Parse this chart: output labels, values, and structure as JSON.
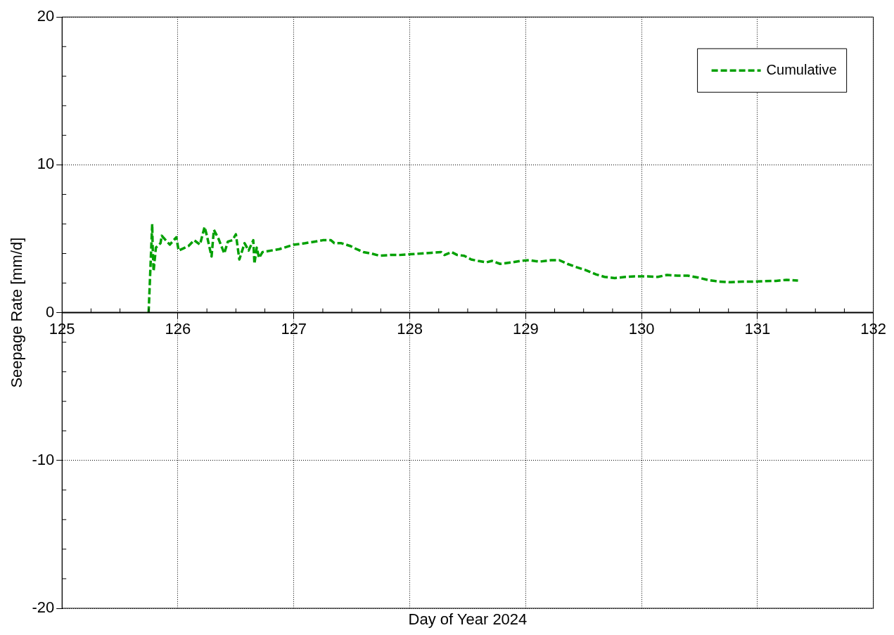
{
  "chart_data": {
    "type": "line",
    "xlabel": "Day of Year 2024",
    "ylabel": "Seepage Rate [mm/d]",
    "xlim": [
      125,
      132
    ],
    "xticks": [
      125,
      126,
      127,
      128,
      129,
      130,
      131,
      132
    ],
    "ylim": [
      -20,
      20
    ],
    "yticks": [
      -20,
      -10,
      0,
      10,
      20
    ],
    "grid": true,
    "legend": "top right",
    "line_style": "dashed",
    "marker": "none",
    "series": [
      {
        "name": "Cumulative",
        "color": "#00a000",
        "x": [
          125.747,
          125.778,
          125.782,
          125.79,
          125.81,
          125.85,
          125.86,
          125.93,
          125.986,
          126.006,
          126.09,
          126.14,
          126.19,
          126.23,
          126.25,
          126.29,
          126.31,
          126.35,
          126.38,
          126.4,
          126.43,
          126.47,
          126.5,
          126.53,
          126.575,
          126.61,
          126.65,
          126.66,
          126.68,
          126.7,
          126.73,
          126.876,
          127.0,
          127.1,
          127.25,
          127.32,
          127.35,
          127.41,
          127.49,
          127.54,
          127.6,
          127.67,
          127.74,
          127.83,
          127.91,
          128.0,
          128.1,
          128.19,
          128.27,
          128.3,
          128.36,
          128.41,
          128.47,
          128.53,
          128.59,
          128.66,
          128.71,
          128.78,
          128.88,
          128.96,
          129.03,
          129.12,
          129.22,
          129.29,
          129.36,
          129.43,
          129.51,
          129.56,
          129.61,
          129.68,
          129.77,
          129.86,
          129.94,
          130.05,
          130.14,
          130.22,
          130.31,
          130.4,
          130.49,
          130.58,
          130.67,
          130.77,
          130.87,
          130.96,
          131.06,
          131.16,
          131.25,
          131.35
        ],
        "values": [
          0,
          6.0,
          4.4,
          2.8,
          4.4,
          4.7,
          5.2,
          4.6,
          5.1,
          4.2,
          4.5,
          4.9,
          4.6,
          5.8,
          5.2,
          3.8,
          5.6,
          5.0,
          4.4,
          4.0,
          4.8,
          4.9,
          5.3,
          3.6,
          4.7,
          4.2,
          4.9,
          3.3,
          4.4,
          3.7,
          4.1,
          4.3,
          4.6,
          4.7,
          4.9,
          4.9,
          4.7,
          4.7,
          4.5,
          4.3,
          4.1,
          4.0,
          3.85,
          3.9,
          3.9,
          3.95,
          4.0,
          4.05,
          4.1,
          3.9,
          4.1,
          3.9,
          3.85,
          3.6,
          3.5,
          3.4,
          3.5,
          3.3,
          3.4,
          3.5,
          3.55,
          3.45,
          3.55,
          3.55,
          3.3,
          3.1,
          2.9,
          2.74,
          2.58,
          2.42,
          2.34,
          2.42,
          2.45,
          2.45,
          2.42,
          2.55,
          2.5,
          2.5,
          2.37,
          2.2,
          2.1,
          2.06,
          2.1,
          2.1,
          2.13,
          2.15,
          2.22,
          2.17
        ]
      }
    ]
  }
}
